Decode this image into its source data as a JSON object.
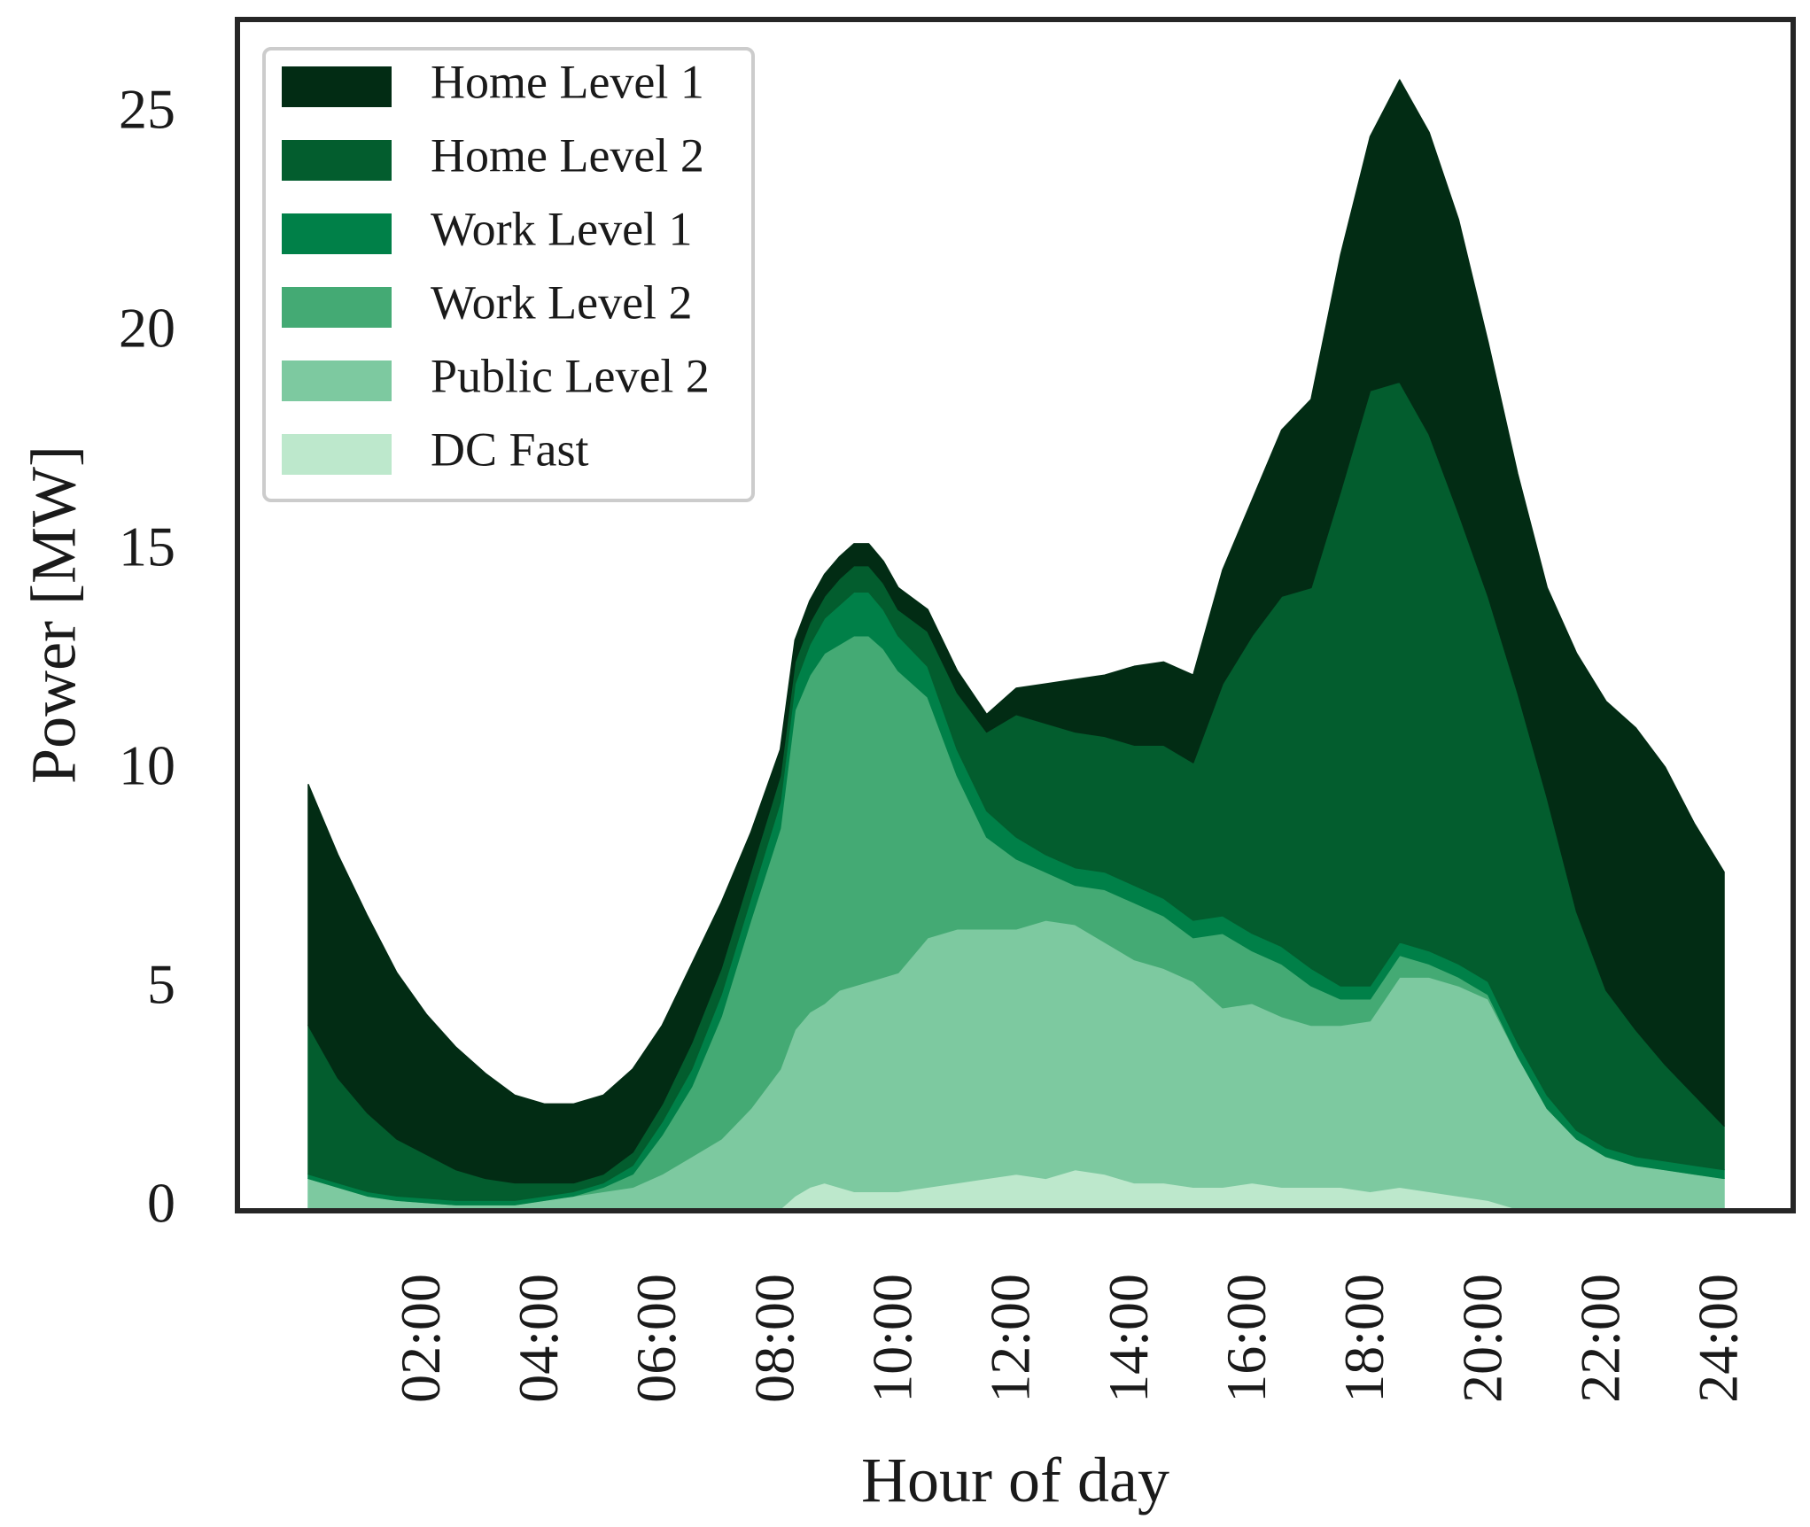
{
  "chart_data": {
    "type": "area",
    "stacked": true,
    "title": "",
    "xlabel": "Hour of day",
    "ylabel": "Power [MW]",
    "xlim": [
      0,
      24
    ],
    "ylim": [
      0,
      27.2
    ],
    "grid": false,
    "legend_position": "top-left",
    "x_ticks": [
      {
        "value": 2,
        "label": "02:00"
      },
      {
        "value": 4,
        "label": "04:00"
      },
      {
        "value": 6,
        "label": "06:00"
      },
      {
        "value": 8,
        "label": "08:00"
      },
      {
        "value": 10,
        "label": "10:00"
      },
      {
        "value": 12,
        "label": "12:00"
      },
      {
        "value": 14,
        "label": "14:00"
      },
      {
        "value": 16,
        "label": "16:00"
      },
      {
        "value": 18,
        "label": "18:00"
      },
      {
        "value": 20,
        "label": "20:00"
      },
      {
        "value": 22,
        "label": "22:00"
      },
      {
        "value": 24,
        "label": "24:00"
      }
    ],
    "y_ticks": [
      {
        "value": 0,
        "label": "0"
      },
      {
        "value": 5,
        "label": "5"
      },
      {
        "value": 10,
        "label": "10"
      },
      {
        "value": 15,
        "label": "15"
      },
      {
        "value": 20,
        "label": "20"
      },
      {
        "value": 25,
        "label": "25"
      }
    ],
    "x": [
      0.0,
      0.5,
      1.0,
      1.5,
      2.0,
      2.5,
      3.0,
      3.5,
      4.0,
      4.5,
      5.0,
      5.5,
      6.0,
      6.5,
      7.0,
      7.5,
      8.0,
      8.25,
      8.5,
      8.75,
      9.0,
      9.25,
      9.5,
      9.75,
      10.0,
      10.5,
      11.0,
      11.5,
      12.0,
      12.5,
      13.0,
      13.5,
      14.0,
      14.5,
      15.0,
      15.5,
      16.0,
      16.5,
      17.0,
      17.5,
      18.0,
      18.5,
      19.0,
      19.5,
      20.0,
      20.5,
      21.0,
      21.5,
      22.0,
      22.5,
      23.0,
      23.5,
      24.0
    ],
    "series": [
      {
        "name": "DC Fast",
        "color": "#bde8cc",
        "values": [
          0.0,
          0.0,
          0.0,
          0.0,
          0.0,
          0.0,
          0.0,
          0.0,
          0.0,
          0.0,
          0.0,
          0.0,
          0.0,
          0.0,
          0.0,
          0.0,
          0.0,
          0.3,
          0.5,
          0.6,
          0.5,
          0.4,
          0.4,
          0.4,
          0.4,
          0.5,
          0.6,
          0.7,
          0.8,
          0.7,
          0.9,
          0.8,
          0.6,
          0.6,
          0.5,
          0.5,
          0.6,
          0.5,
          0.5,
          0.5,
          0.4,
          0.5,
          0.4,
          0.3,
          0.2,
          0.0,
          0.0,
          0.0,
          0.0,
          0.0,
          0.0,
          0.0,
          0.0
        ]
      },
      {
        "name": "Public Level 2",
        "color": "#7dc9a0",
        "values": [
          0.7,
          0.5,
          0.3,
          0.2,
          0.15,
          0.1,
          0.1,
          0.1,
          0.2,
          0.3,
          0.4,
          0.5,
          0.8,
          1.2,
          1.6,
          2.3,
          3.2,
          3.8,
          4.0,
          4.1,
          4.5,
          4.7,
          4.8,
          4.9,
          5.0,
          5.7,
          5.8,
          5.7,
          5.6,
          5.9,
          5.6,
          5.3,
          5.1,
          4.9,
          4.7,
          4.1,
          4.1,
          3.9,
          3.7,
          3.7,
          3.9,
          4.8,
          4.9,
          4.8,
          4.6,
          3.5,
          2.3,
          1.6,
          1.2,
          1.0,
          0.9,
          0.8,
          0.7
        ]
      },
      {
        "name": "Work Level 2",
        "color": "#44aa74",
        "values": [
          0.0,
          0.0,
          0.0,
          0.0,
          0.0,
          0.0,
          0.0,
          0.0,
          0.0,
          0.0,
          0.1,
          0.3,
          0.9,
          1.6,
          2.8,
          4.3,
          5.5,
          7.3,
          7.7,
          8.0,
          7.9,
          8.0,
          7.9,
          7.5,
          6.9,
          5.5,
          3.5,
          2.1,
          1.6,
          1.1,
          0.9,
          1.2,
          1.3,
          1.2,
          1.0,
          1.7,
          1.2,
          1.2,
          0.9,
          0.6,
          0.5,
          0.5,
          0.3,
          0.2,
          0.1,
          0.0,
          0.0,
          0.0,
          0.0,
          0.0,
          0.0,
          0.0,
          0.0
        ]
      },
      {
        "name": "Work Level 1",
        "color": "#008048",
        "values": [
          0.1,
          0.1,
          0.1,
          0.1,
          0.1,
          0.1,
          0.1,
          0.1,
          0.1,
          0.1,
          0.1,
          0.2,
          0.3,
          0.4,
          0.5,
          0.5,
          0.6,
          0.6,
          0.7,
          0.8,
          0.9,
          1.0,
          1.0,
          0.9,
          0.8,
          0.7,
          0.6,
          0.6,
          0.5,
          0.4,
          0.4,
          0.4,
          0.4,
          0.4,
          0.4,
          0.4,
          0.4,
          0.4,
          0.4,
          0.3,
          0.3,
          0.3,
          0.3,
          0.3,
          0.3,
          0.3,
          0.3,
          0.2,
          0.2,
          0.2,
          0.2,
          0.2,
          0.2
        ]
      },
      {
        "name": "Home Level 2",
        "color": "#035d2e",
        "values": [
          3.4,
          2.4,
          1.8,
          1.3,
          1.0,
          0.7,
          0.5,
          0.4,
          0.3,
          0.2,
          0.2,
          0.3,
          0.4,
          0.6,
          0.6,
          0.6,
          0.6,
          0.5,
          0.5,
          0.5,
          0.6,
          0.6,
          0.6,
          0.6,
          0.6,
          0.8,
          1.3,
          1.8,
          2.8,
          3.0,
          3.1,
          3.1,
          3.2,
          3.5,
          3.6,
          5.3,
          6.8,
          8.0,
          8.7,
          11.3,
          13.6,
          12.8,
          11.8,
          10.3,
          8.8,
          8.0,
          6.8,
          5.0,
          3.6,
          2.9,
          2.2,
          1.6,
          1.0
        ]
      },
      {
        "name": "Home Level 1",
        "color": "#022c14",
        "values": [
          5.5,
          5.1,
          4.5,
          3.8,
          3.2,
          2.8,
          2.4,
          2.0,
          1.8,
          1.8,
          1.8,
          1.9,
          1.8,
          1.8,
          1.5,
          0.9,
          0.6,
          0.5,
          0.5,
          0.5,
          0.5,
          0.5,
          0.5,
          0.5,
          0.5,
          0.5,
          0.5,
          0.4,
          0.6,
          0.9,
          1.2,
          1.4,
          1.8,
          1.9,
          2.0,
          2.6,
          3.1,
          3.8,
          4.3,
          5.4,
          5.8,
          6.9,
          6.9,
          6.7,
          5.8,
          5.0,
          4.8,
          5.9,
          6.6,
          6.9,
          6.8,
          6.2,
          5.8
        ]
      }
    ]
  }
}
